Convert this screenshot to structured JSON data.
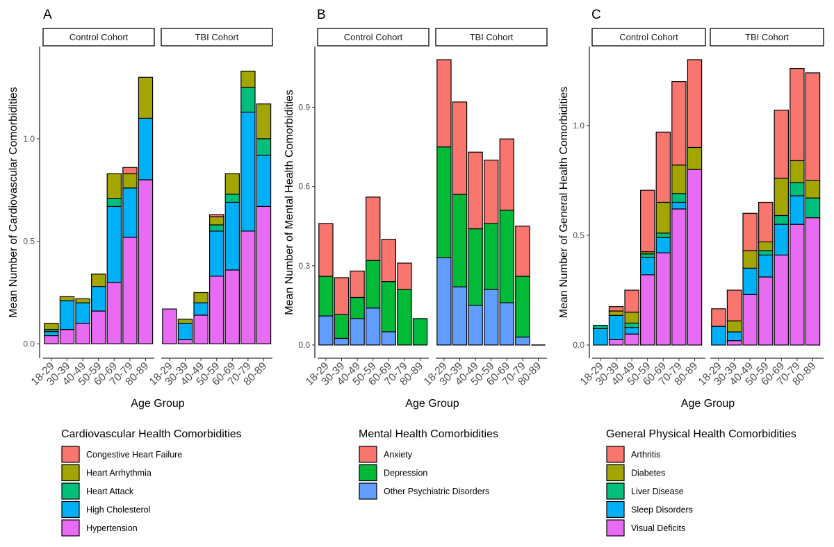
{
  "colors": {
    "congestive_heart_failure": "#F8766D",
    "heart_arrhythmia": "#A3A500",
    "heart_attack": "#00BF7D",
    "high_cholesterol": "#00B0F6",
    "hypertension": "#E76BF3",
    "anxiety": "#F8766D",
    "depression": "#00BA38",
    "other_psych": "#619CFF",
    "arthritis": "#F8766D",
    "diabetes": "#A3A500",
    "liver_disease": "#00BF7D",
    "sleep_disorders": "#00B0F6",
    "visual_deficits": "#E76BF3"
  },
  "chart_data": [
    {
      "type": "bar",
      "stacked": true,
      "panel_label": "A",
      "facets": [
        "Control Cohort",
        "TBI Cohort"
      ],
      "categories": [
        "18-29",
        "30-39",
        "40-49",
        "50-59",
        "60-69",
        "70-79",
        "80-89"
      ],
      "xlabel": "Age Group",
      "ylabel": "Mean Number of Cardiovascular Comorbidities",
      "ylim": [
        -0.07,
        1.45
      ],
      "yticks": [
        0.0,
        0.5,
        1.0
      ],
      "ytick_labels": [
        "0.0",
        "0.5",
        "1.0"
      ],
      "legend_title": "Cardiovascular Health Comorbidities",
      "series": [
        {
          "name": "Congestive Heart Failure",
          "color_key": "congestive_heart_failure",
          "values": {
            "Control Cohort": [
              0,
              0,
              0,
              0,
              0,
              0.03,
              0
            ],
            "TBI Cohort": [
              0,
              0,
              0,
              0.01,
              0,
              0,
              0
            ]
          }
        },
        {
          "name": "Heart Arrhythmia",
          "color_key": "heart_arrhythmia",
          "values": {
            "Control Cohort": [
              0.03,
              0.02,
              0.02,
              0.06,
              0.12,
              0.07,
              0.2
            ],
            "TBI Cohort": [
              0,
              0.02,
              0.05,
              0.04,
              0.1,
              0.08,
              0.17
            ]
          }
        },
        {
          "name": "Heart Attack",
          "color_key": "heart_attack",
          "values": {
            "Control Cohort": [
              0.01,
              0,
              0,
              0,
              0.04,
              0,
              0
            ],
            "TBI Cohort": [
              0,
              0,
              0,
              0.03,
              0.04,
              0.12,
              0.08
            ]
          }
        },
        {
          "name": "High Cholesterol",
          "color_key": "high_cholesterol",
          "values": {
            "Control Cohort": [
              0.02,
              0.14,
              0.1,
              0.12,
              0.37,
              0.24,
              0.3
            ],
            "TBI Cohort": [
              0,
              0.08,
              0.06,
              0.22,
              0.33,
              0.58,
              0.25
            ]
          }
        },
        {
          "name": "Hypertension",
          "color_key": "hypertension",
          "values": {
            "Control Cohort": [
              0.04,
              0.07,
              0.1,
              0.16,
              0.3,
              0.52,
              0.8
            ],
            "TBI Cohort": [
              0.17,
              0.02,
              0.14,
              0.33,
              0.36,
              0.55,
              0.67
            ]
          }
        }
      ]
    },
    {
      "type": "bar",
      "stacked": true,
      "panel_label": "B",
      "facets": [
        "Control Cohort",
        "TBI Cohort"
      ],
      "categories": [
        "18-29",
        "30-39",
        "40-49",
        "50-59",
        "60-69",
        "70-79",
        "80-89"
      ],
      "xlabel": "Age Group",
      "ylabel": "Mean Number of Mental Health Comorbidities",
      "ylim": [
        -0.05,
        1.13
      ],
      "yticks": [
        0.0,
        0.3,
        0.6,
        0.9
      ],
      "ytick_labels": [
        "0.0",
        "0.3",
        "0.6",
        "0.9"
      ],
      "legend_title": "Mental Health Comorbidities",
      "series": [
        {
          "name": "Anxiety",
          "color_key": "anxiety",
          "values": {
            "Control Cohort": [
              0.2,
              0.14,
              0.1,
              0.24,
              0.16,
              0.1,
              0
            ],
            "TBI Cohort": [
              0.33,
              0.35,
              0.29,
              0.24,
              0.27,
              0.19,
              0
            ]
          }
        },
        {
          "name": "Depression",
          "color_key": "depression",
          "values": {
            "Control Cohort": [
              0.15,
              0.09,
              0.08,
              0.18,
              0.19,
              0.21,
              0.1
            ],
            "TBI Cohort": [
              0.42,
              0.35,
              0.29,
              0.25,
              0.35,
              0.23,
              0
            ]
          }
        },
        {
          "name": "Other Psychiatric Disorders",
          "color_key": "other_psych",
          "values": {
            "Control Cohort": [
              0.11,
              0.025,
              0.1,
              0.14,
              0.05,
              0,
              0
            ],
            "TBI Cohort": [
              0.33,
              0.22,
              0.15,
              0.21,
              0.16,
              0.03,
              0
            ]
          }
        }
      ]
    },
    {
      "type": "bar",
      "stacked": true,
      "panel_label": "C",
      "facets": [
        "Control Cohort",
        "TBI Cohort"
      ],
      "categories": [
        "18-29",
        "30-39",
        "40-49",
        "50-59",
        "60-69",
        "70-79",
        "80-89"
      ],
      "xlabel": "Age Group",
      "ylabel": "Mean Number of General Health Comorbidities",
      "ylim": [
        -0.06,
        1.36
      ],
      "yticks": [
        0.0,
        0.5,
        1.0
      ],
      "ytick_labels": [
        "0.0",
        "0.5",
        "1.0"
      ],
      "legend_title": "General Physical Health Comorbidities",
      "series": [
        {
          "name": "Arthritis",
          "color_key": "arthritis",
          "values": {
            "Control Cohort": [
              0,
              0.02,
              0.1,
              0.28,
              0.32,
              0.38,
              0.4
            ],
            "TBI Cohort": [
              0.08,
              0.14,
              0.17,
              0.18,
              0.31,
              0.42,
              0.49
            ]
          }
        },
        {
          "name": "Diabetes",
          "color_key": "diabetes",
          "values": {
            "Control Cohort": [
              0,
              0.02,
              0.05,
              0.01,
              0.14,
              0.13,
              0.1
            ],
            "TBI Cohort": [
              0,
              0.05,
              0.08,
              0.04,
              0.17,
              0.1,
              0.08
            ]
          }
        },
        {
          "name": "Liver Disease",
          "color_key": "liver_disease",
          "values": {
            "Control Cohort": [
              0.015,
              0,
              0.02,
              0.015,
              0.02,
              0.04,
              0
            ],
            "TBI Cohort": [
              0,
              0,
              0,
              0.02,
              0.04,
              0.06,
              0.09
            ]
          }
        },
        {
          "name": "Sleep Disorders",
          "color_key": "sleep_disorders",
          "values": {
            "Control Cohort": [
              0.075,
              0.11,
              0.03,
              0.08,
              0.07,
              0.03,
              0
            ],
            "TBI Cohort": [
              0.085,
              0.04,
              0.12,
              0.1,
              0.14,
              0.13,
              0
            ]
          }
        },
        {
          "name": "Visual Deficits",
          "color_key": "visual_deficits",
          "values": {
            "Control Cohort": [
              0,
              0.025,
              0.05,
              0.32,
              0.42,
              0.62,
              0.8
            ],
            "TBI Cohort": [
              0,
              0.02,
              0.23,
              0.31,
              0.41,
              0.55,
              0.58
            ]
          }
        }
      ]
    }
  ]
}
